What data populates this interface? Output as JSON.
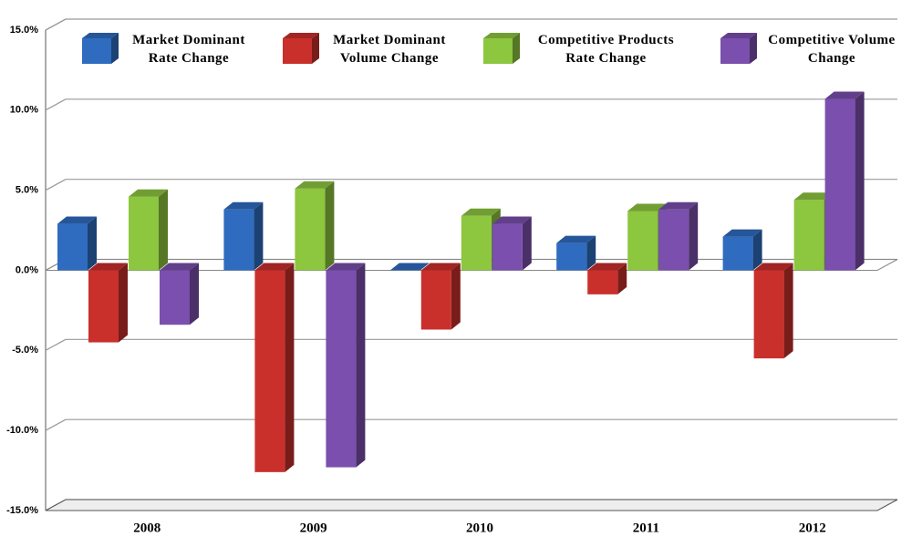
{
  "chart_data": {
    "type": "bar3d",
    "categories": [
      "2008",
      "2009",
      "2010",
      "2011",
      "2012"
    ],
    "series": [
      {
        "name": "Market Dominant Rate Change",
        "color": "#2f6cc0",
        "values": [
          2.9,
          3.8,
          0.0,
          1.7,
          2.1
        ]
      },
      {
        "name": "Market Dominant Volume Change",
        "color": "#c9302c",
        "values": [
          -4.5,
          -12.6,
          -3.7,
          -1.5,
          -5.5
        ]
      },
      {
        "name": "Competitive Products Rate Change",
        "color": "#8dc63f",
        "values": [
          4.6,
          5.1,
          3.4,
          3.7,
          4.4
        ]
      },
      {
        "name": "Competitive Volume Change",
        "color": "#7b4fad",
        "values": [
          -3.4,
          -12.3,
          2.9,
          3.8,
          10.7
        ]
      }
    ],
    "ylim": [
      -15,
      15
    ],
    "yticks": [
      {
        "value": -15,
        "label": "-15.0%"
      },
      {
        "value": -10,
        "label": "-10.0%"
      },
      {
        "value": -5,
        "label": "-5.0%"
      },
      {
        "value": 0,
        "label": "0.0%"
      },
      {
        "value": 5,
        "label": "5.0%"
      },
      {
        "value": 10,
        "label": "10.0%"
      },
      {
        "value": 15,
        "label": "15.0%"
      }
    ],
    "grid": true
  }
}
